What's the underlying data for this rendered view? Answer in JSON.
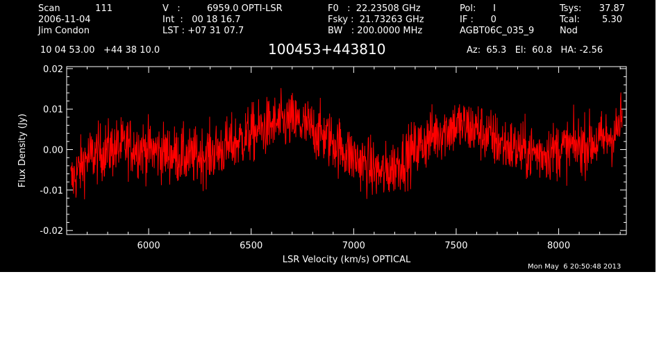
{
  "header": {
    "col1": [
      "Scan",
      "2006-11-04",
      "Jim Condon"
    ],
    "scan_number": "111",
    "col2": [
      "V   :",
      "Int  :   00 18 16.7",
      "LST : +07 31 07.7"
    ],
    "velocity": "6959.0 OPTI-LSR",
    "col3": [
      "F0   :  22.23508 GHz",
      "Fsky :  21.73263 GHz",
      "BW   : 200.0000 MHz"
    ],
    "col4": [
      "Pol:      I",
      "IF :      0",
      "AGBT06C_035_9"
    ],
    "col5": [
      "Tsys:",
      "Tcal:",
      "Nod"
    ],
    "tsys": "37.87",
    "tcal": "5.30",
    "coords": "10 04 53.00   +44 38 10.0",
    "source": "100453+443810",
    "pointing": "Az:  65.3   El:  60.8   HA: -2.56",
    "timestamp": "Mon May  6 20:50:48 2013"
  },
  "chart_data": {
    "type": "line",
    "title": "100453+443810",
    "xlabel": "LSR Velocity (km/s) OPTICAL",
    "ylabel": "Flux Density (Jy)",
    "xlim": [
      5600,
      8330
    ],
    "ylim": [
      -0.021,
      0.0205
    ],
    "x_ticks": [
      6000,
      6500,
      7000,
      7500,
      8000
    ],
    "y_ticks": [
      "0.02",
      "0.01",
      "0.00",
      "-0.01",
      "-0.02"
    ],
    "line_color": "#ff0000",
    "background": "#000000",
    "series": [
      {
        "x": [
          5620,
          5700,
          5800,
          5900,
          6000,
          6100,
          6200,
          6300,
          6400,
          6500,
          6600,
          6700,
          6800,
          6900,
          7000,
          7100,
          7150,
          7200,
          7300,
          7400,
          7500,
          7600,
          7700,
          7800,
          7900,
          8000,
          8100,
          8200,
          8280,
          8310
        ],
        "values": [
          -0.008,
          -0.002,
          0.0,
          0.001,
          0.0,
          -0.001,
          -0.002,
          -0.001,
          0.001,
          0.004,
          0.006,
          0.007,
          0.005,
          0.002,
          -0.002,
          -0.005,
          -0.006,
          -0.004,
          0.0,
          0.004,
          0.006,
          0.005,
          0.002,
          0.0,
          -0.001,
          0.0,
          0.001,
          0.002,
          0.004,
          0.008
        ],
        "noise_rms": 0.004
      }
    ]
  }
}
